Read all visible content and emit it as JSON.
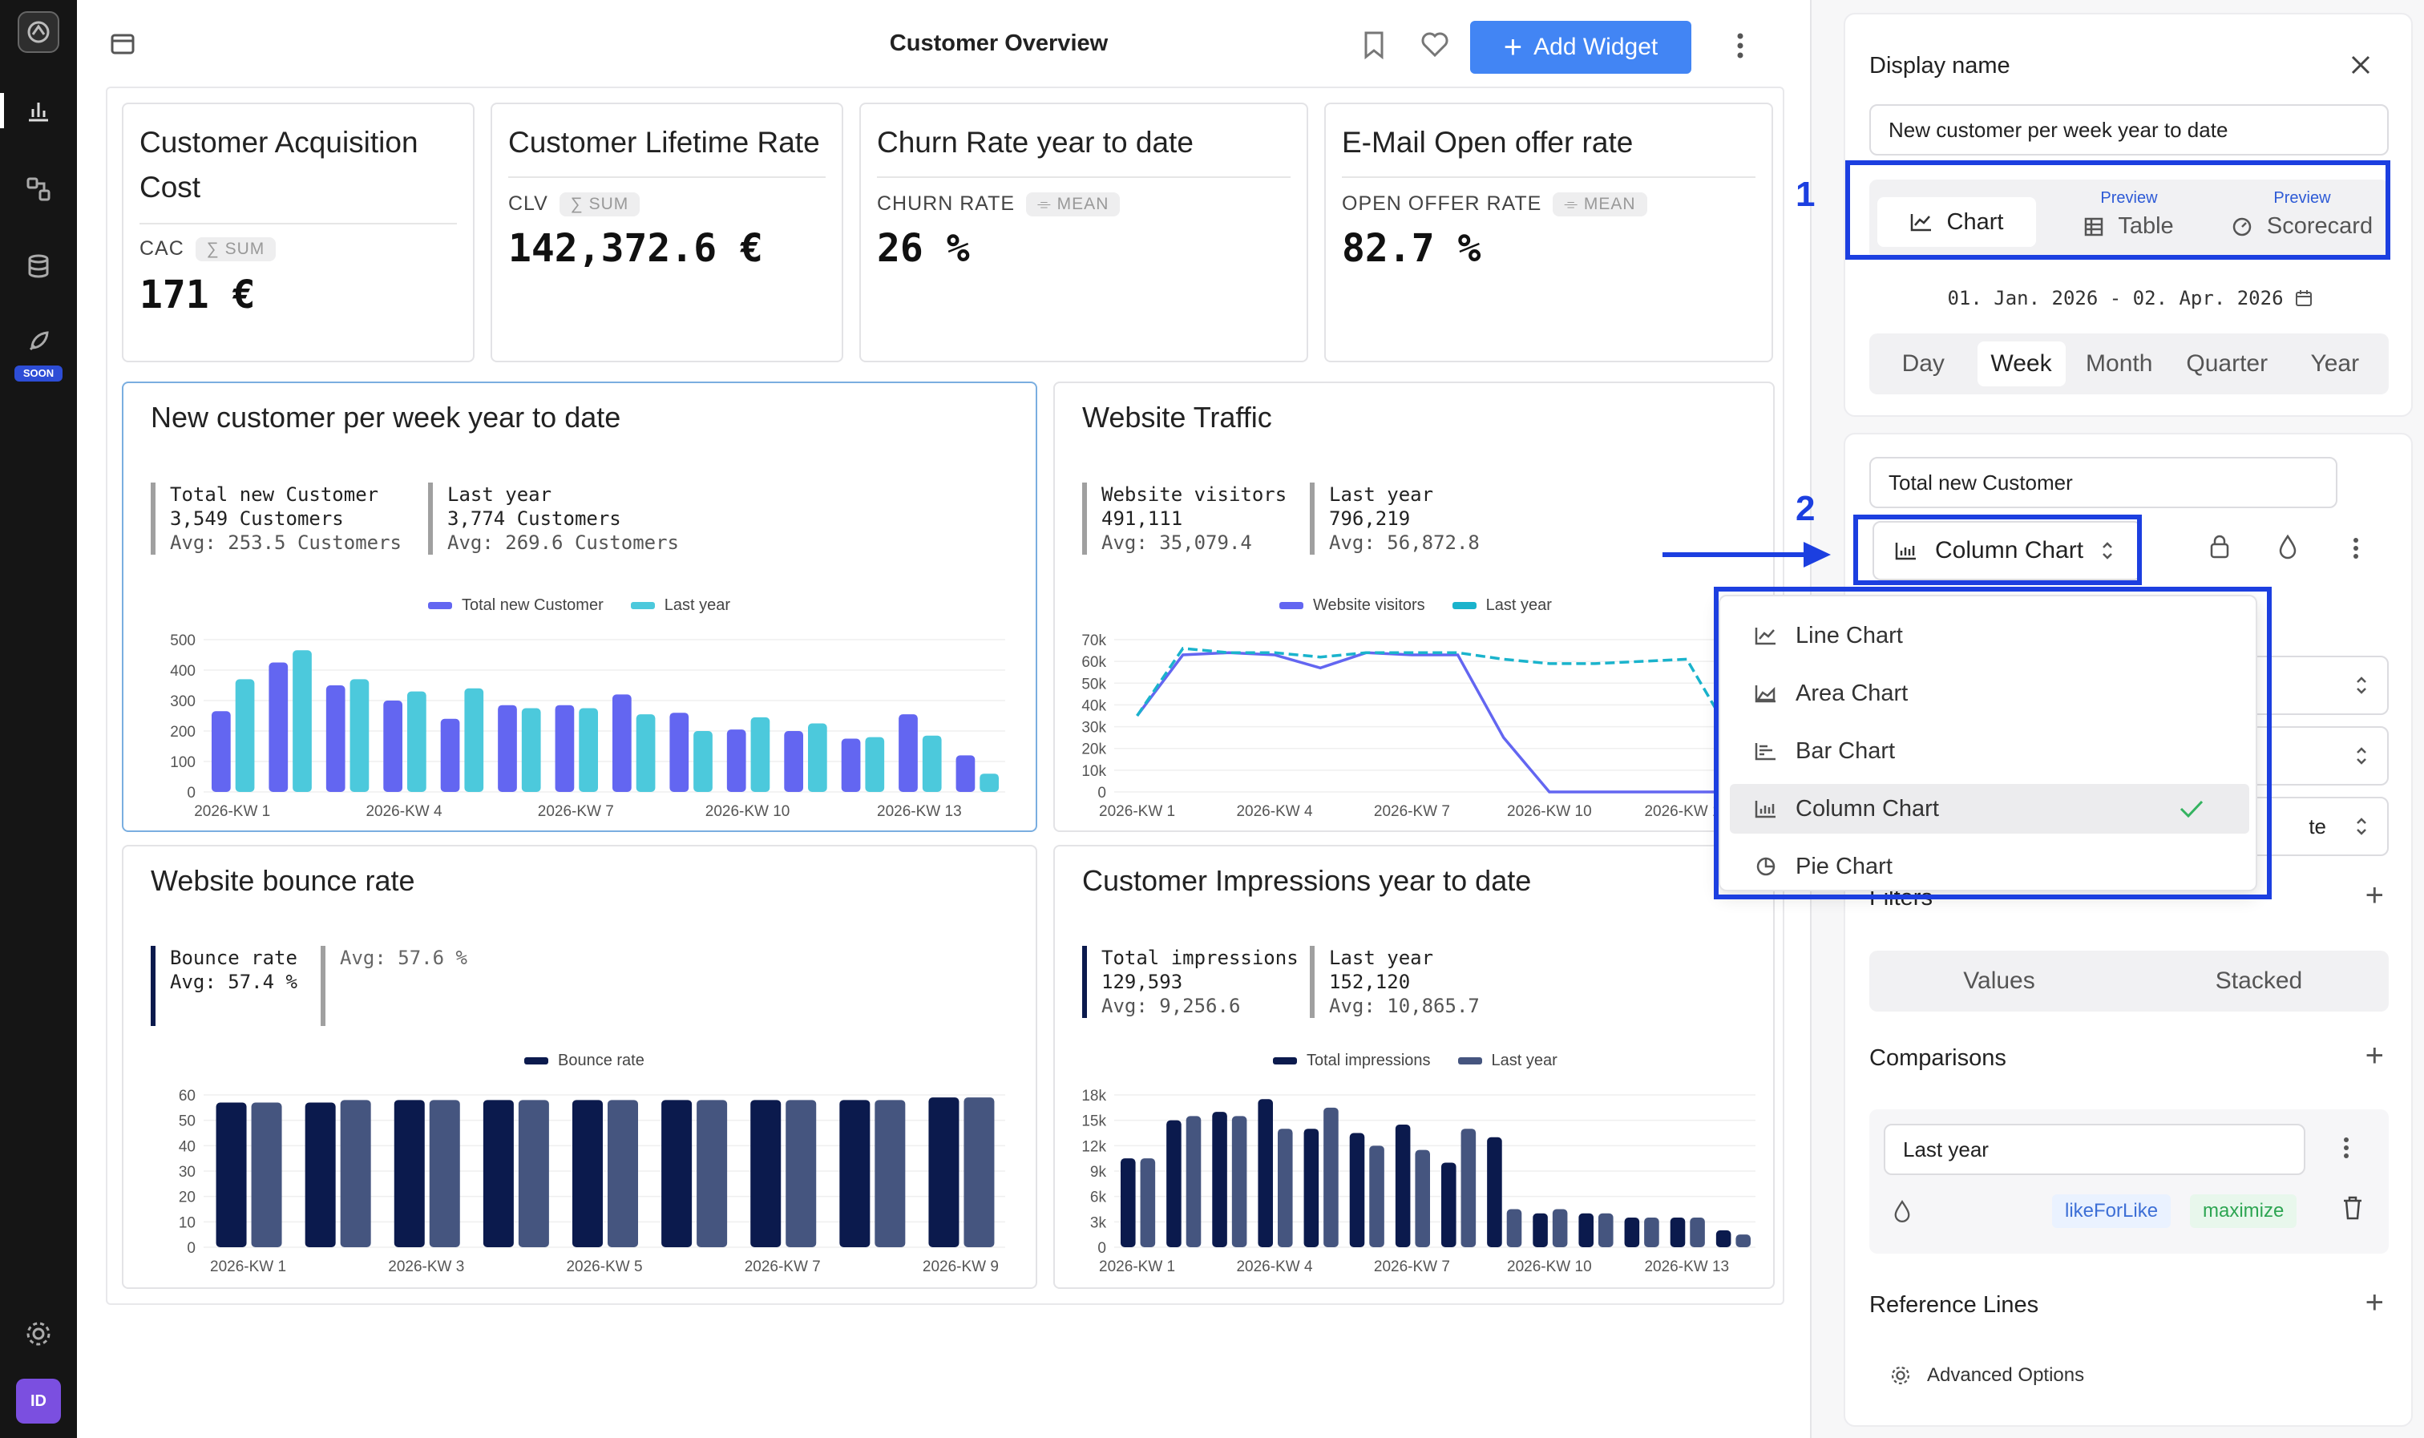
{
  "header": {
    "title": "Customer Overview",
    "add_widget_label": "Add Widget"
  },
  "rail": {
    "soon_badge": "SOON",
    "avatar_initials": "ID"
  },
  "kpis": [
    {
      "title": "Customer Acquisition Cost",
      "label": "CAC",
      "tag": "∑ SUM",
      "value": "171 €"
    },
    {
      "title": "Customer Lifetime Rate",
      "label": "CLV",
      "tag": "∑ SUM",
      "value": "142,372.6 €"
    },
    {
      "title": "Churn Rate year to date",
      "label": "CHURN RATE",
      "tag": "⌯ MEAN",
      "value": "26 %"
    },
    {
      "title": "E-Mail Open offer rate",
      "label": "OPEN OFFER RATE",
      "tag": "⌯ MEAN",
      "value": "82.7 %"
    }
  ],
  "widgets": {
    "new_customer": {
      "title": "New customer per week year to date",
      "stat1": {
        "l1": "Total new Customer",
        "l2": "3,549 Customers",
        "l3": "Avg: 253.5 Customers"
      },
      "stat2": {
        "l1": "Last year",
        "l2": "3,774 Customers",
        "l3": "Avg: 269.6 Customers"
      },
      "legend": [
        "Total new Customer",
        "Last year"
      ]
    },
    "traffic": {
      "title": "Website Traffic",
      "stat1": {
        "l1": "Website visitors",
        "l2": "491,111",
        "l3": "Avg: 35,079.4"
      },
      "stat2": {
        "l1": "Last year",
        "l2": "796,219",
        "l3": "Avg: 56,872.8"
      },
      "legend": [
        "Website visitors",
        "Last year"
      ]
    },
    "bounce": {
      "title": "Website bounce rate",
      "stat1": {
        "l1": "Bounce rate",
        "l2": "Avg: 57.4 %"
      },
      "stat2": {
        "l1": "Avg: 57.6 %"
      },
      "legend": [
        "Bounce rate"
      ]
    },
    "impressions": {
      "title": "Customer Impressions year to date",
      "stat1": {
        "l1": "Total impressions",
        "l2": "129,593",
        "l3": "Avg: 9,256.6"
      },
      "stat2": {
        "l1": "Last year",
        "l2": "152,120",
        "l3": "Avg: 10,865.7"
      },
      "legend": [
        "Total impressions",
        "Last year"
      ]
    }
  },
  "panel": {
    "display_name_label": "Display name",
    "display_name_value": "New customer per week year to date",
    "view_tabs": [
      {
        "label": "Chart",
        "preview": ""
      },
      {
        "label": "Table",
        "preview": "Preview"
      },
      {
        "label": "Scorecard",
        "preview": "Preview"
      }
    ],
    "date_range": "01. Jan. 2026 - 02. Apr. 2026",
    "granularity": [
      "Day",
      "Week",
      "Month",
      "Quarter",
      "Year"
    ],
    "granularity_selected": "Week",
    "series_name": "Total new Customer",
    "chart_type_selected": "Column Chart",
    "chart_type_options": [
      "Line Chart",
      "Area Chart",
      "Bar Chart",
      "Column Chart",
      "Pie Chart"
    ],
    "filters_label": "Filters",
    "mode_options": [
      "Values",
      "Stacked"
    ],
    "comparisons_label": "Comparisons",
    "comparison_value": "Last year",
    "comparison_tags": [
      "likeForLike",
      "maximize"
    ],
    "reference_lines_label": "Reference Lines",
    "advanced_options_label": "Advanced Options",
    "partial_text": "te"
  },
  "annotations": {
    "marker1": "1",
    "marker2": "2"
  },
  "colors": {
    "accent": "#4285f4",
    "annotation": "#1c3fe0",
    "purple": "#6366f1",
    "cyan": "#4cc9dc",
    "navy": "#0b1a4d",
    "slate": "#45557f"
  },
  "chart_data": [
    {
      "type": "bar",
      "title": "New customer per week year to date",
      "categories": [
        "2026-KW 1",
        "2026-KW 2",
        "2026-KW 3",
        "2026-KW 4",
        "2026-KW 5",
        "2026-KW 6",
        "2026-KW 7",
        "2026-KW 8",
        "2026-KW 9",
        "2026-KW 10",
        "2026-KW 11",
        "2026-KW 12",
        "2026-KW 13",
        "2026-KW 14"
      ],
      "series": [
        {
          "name": "Total new Customer",
          "values": [
            265,
            425,
            350,
            300,
            240,
            285,
            285,
            320,
            260,
            205,
            200,
            175,
            255,
            120
          ]
        },
        {
          "name": "Last year",
          "values": [
            370,
            465,
            370,
            330,
            340,
            275,
            275,
            255,
            200,
            245,
            225,
            180,
            185,
            60
          ]
        }
      ],
      "ylim": [
        0,
        500
      ],
      "yticks": [
        0,
        100,
        200,
        300,
        400,
        500
      ],
      "xticks": [
        "2026-KW 1",
        "2026-KW 4",
        "2026-KW 7",
        "2026-KW 10",
        "2026-KW 13"
      ]
    },
    {
      "type": "line",
      "title": "Website Traffic",
      "categories": [
        "2026-KW 1",
        "2026-KW 2",
        "2026-KW 3",
        "2026-KW 4",
        "2026-KW 5",
        "2026-KW 6",
        "2026-KW 7",
        "2026-KW 8",
        "2026-KW 9",
        "2026-KW 10",
        "2026-KW 11",
        "2026-KW 12",
        "2026-KW 13",
        "2026-KW 14"
      ],
      "series": [
        {
          "name": "Website visitors",
          "values": [
            35000,
            63000,
            64000,
            63000,
            57000,
            64000,
            63000,
            63000,
            25000,
            0,
            0,
            0,
            0,
            0
          ]
        },
        {
          "name": "Last year",
          "values": [
            35000,
            66000,
            64000,
            64000,
            62000,
            64000,
            64000,
            64000,
            61000,
            59000,
            59000,
            60000,
            61000,
            25000
          ]
        }
      ],
      "ylim": [
        0,
        70000
      ],
      "yticks_labels": [
        "0",
        "10k",
        "20k",
        "30k",
        "40k",
        "50k",
        "60k",
        "70k"
      ],
      "xticks": [
        "2026-KW 1",
        "2026-KW 4",
        "2026-KW 7",
        "2026-KW 10",
        "2026-KW 13"
      ]
    },
    {
      "type": "bar",
      "title": "Website bounce rate",
      "categories": [
        "2026-KW 1",
        "2026-KW 2",
        "2026-KW 3",
        "2026-KW 4",
        "2026-KW 5",
        "2026-KW 6",
        "2026-KW 7",
        "2026-KW 8",
        "2026-KW 9"
      ],
      "series": [
        {
          "name": "Bounce rate",
          "values": [
            57,
            57,
            58,
            58,
            58,
            58,
            58,
            58,
            59
          ]
        },
        {
          "name": "",
          "values": [
            57,
            58,
            58,
            58,
            58,
            58,
            58,
            58,
            59
          ]
        }
      ],
      "ylim": [
        0,
        60
      ],
      "yticks": [
        0,
        10,
        20,
        30,
        40,
        50,
        60
      ],
      "xticks": [
        "2026-KW 1",
        "2026-KW 3",
        "2026-KW 5",
        "2026-KW 7",
        "2026-KW 9"
      ]
    },
    {
      "type": "bar",
      "title": "Customer Impressions year to date",
      "categories": [
        "2026-KW 1",
        "2026-KW 2",
        "2026-KW 3",
        "2026-KW 4",
        "2026-KW 5",
        "2026-KW 6",
        "2026-KW 7",
        "2026-KW 8",
        "2026-KW 9",
        "2026-KW 10",
        "2026-KW 11",
        "2026-KW 12",
        "2026-KW 13",
        "2026-KW 14"
      ],
      "series": [
        {
          "name": "Total impressions",
          "values": [
            10500,
            15000,
            16000,
            17500,
            14000,
            13500,
            14500,
            10000,
            13000,
            4000,
            4000,
            3500,
            3500,
            2000
          ]
        },
        {
          "name": "Last year",
          "values": [
            10500,
            15500,
            15500,
            14000,
            16500,
            12000,
            11500,
            14000,
            4500,
            4500,
            4000,
            3500,
            3500,
            1500
          ]
        }
      ],
      "ylim": [
        0,
        18000
      ],
      "yticks_labels": [
        "0",
        "3k",
        "6k",
        "9k",
        "12k",
        "15k",
        "18k"
      ],
      "xticks": [
        "2026-KW 1",
        "2026-KW 4",
        "2026-KW 7",
        "2026-KW 10",
        "2026-KW 13"
      ]
    }
  ]
}
